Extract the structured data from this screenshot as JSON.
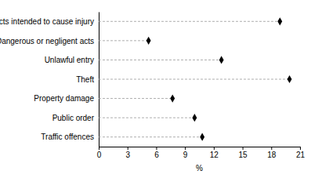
{
  "chart_data": {
    "type": "dot",
    "orientation": "horizontal",
    "categories": [
      "Acts intended to cause injury",
      "Dangerous or negligent acts",
      "Unlawful entry",
      "Theft",
      "Property damage",
      "Public order",
      "Traffic offences"
    ],
    "values": [
      18.9,
      5.2,
      12.8,
      19.9,
      7.7,
      10.0,
      10.8
    ],
    "color": "#000000",
    "marker": "diamond",
    "line_style": "dashed",
    "x_label": "%",
    "xlim": [
      0,
      21
    ],
    "xticks": [
      0,
      3,
      6,
      9,
      12,
      15,
      18,
      21
    ]
  }
}
